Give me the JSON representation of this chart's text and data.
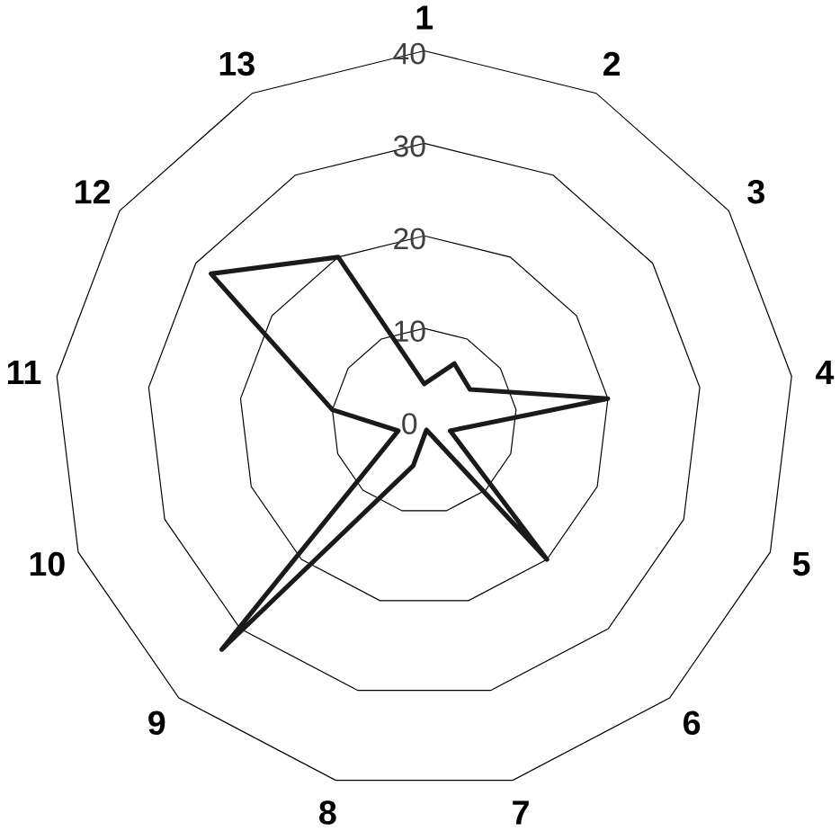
{
  "chart_data": {
    "type": "radar",
    "categories": [
      "1",
      "2",
      "3",
      "4",
      "5",
      "6",
      "7",
      "8",
      "9",
      "10",
      "11",
      "12",
      "13"
    ],
    "series": [
      {
        "color": "#1a1a1a",
        "values": [
          4,
          7,
          6,
          20,
          3,
          20,
          1,
          5,
          33,
          3,
          10,
          28,
          20
        ]
      }
    ],
    "ylim": [
      0,
      40
    ],
    "yticks": [
      0,
      10,
      20,
      30,
      40
    ],
    "grid": true,
    "marker": "none",
    "line_style": "solid"
  }
}
